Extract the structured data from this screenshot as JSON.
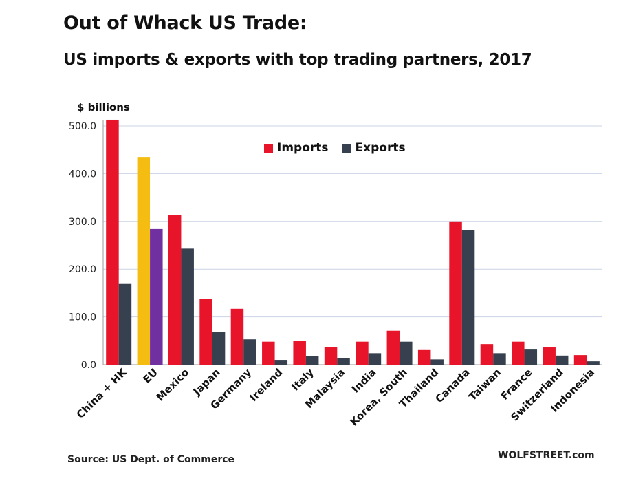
{
  "chart_data": {
    "type": "bar",
    "title": "Out of Whack US Trade:",
    "subtitle": "US imports & exports with top trading partners, 2017",
    "ylabel": "$ billions",
    "ylim": [
      0,
      500
    ],
    "yticks": [
      "0.0",
      "100.0",
      "200.0",
      "300.0",
      "400.0",
      "500.0"
    ],
    "grid": true,
    "legend_position": "top-center",
    "categories": [
      "China + HK",
      "EU",
      "Mexico",
      "Japan",
      "Germany",
      "Ireland",
      "Italy",
      "Malaysia",
      "India",
      "Korea, South",
      "Thailand",
      "Canada",
      "Taiwan",
      "France",
      "Switzerland",
      "Indonesia"
    ],
    "series": [
      {
        "name": "Imports",
        "color": "#e8142a",
        "values": [
          513,
          435,
          314,
          137,
          117,
          48,
          50,
          37,
          48,
          71,
          32,
          300,
          43,
          48,
          36,
          20
        ]
      },
      {
        "name": "Exports",
        "color": "#36404f",
        "values": [
          169,
          284,
          243,
          68,
          53,
          10,
          18,
          13,
          24,
          48,
          11,
          282,
          24,
          33,
          19,
          7
        ]
      }
    ],
    "highlight": {
      "category": "EU",
      "import_color": "#f5bd12",
      "export_color": "#7030a0"
    }
  },
  "source": "Source: US Dept. of Commerce",
  "brand": "WOLFSTREET.com"
}
